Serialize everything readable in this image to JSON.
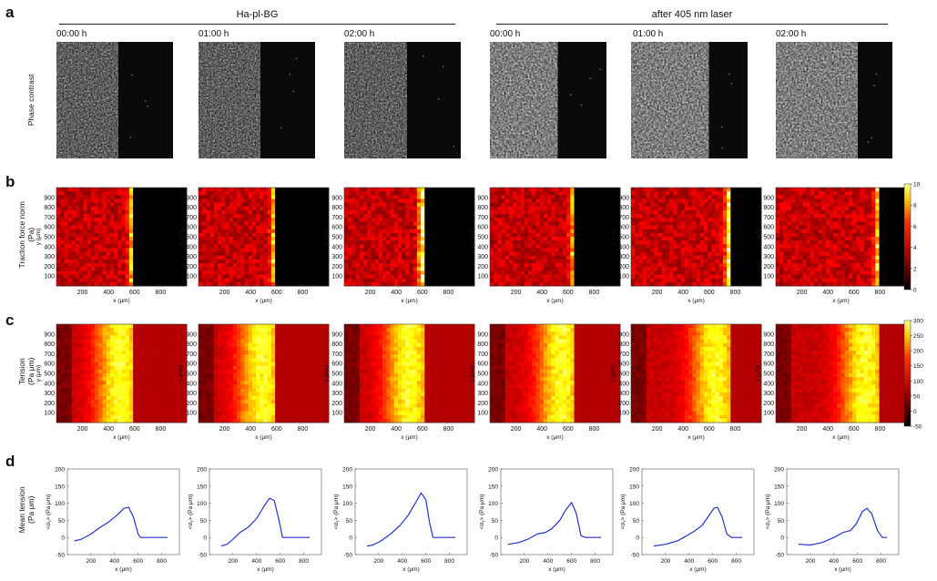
{
  "panels": {
    "a": "a",
    "b": "b",
    "c": "c",
    "d": "d"
  },
  "group_titles": [
    "Ha-pl-BG",
    "after 405 nm laser"
  ],
  "time_labels": [
    "00:00 h",
    "01:00 h",
    "02:00 h",
    "00:00 h",
    "01:00 h",
    "02:00 h"
  ],
  "row_labels": {
    "a": "Phase contrast",
    "b_line1": "Traction force norm",
    "b_line2": "(Pa)",
    "c_line1": "Tension",
    "c_line2": "(Pa μm)",
    "d_line1": "Mean tension",
    "d_line2": "(Pa μm)"
  },
  "colors": {
    "hot_black": "#000000",
    "hot_red": "#cc1100",
    "hot_yellow": "#ffff66"
  },
  "chart_data": [
    {
      "type": "heatmap",
      "panel": "b",
      "xlabel": "x (μm)",
      "ylabel": "y (μm)",
      "xticks": [
        200,
        400,
        600,
        800
      ],
      "yticks": [
        100,
        200,
        300,
        400,
        500,
        600,
        700,
        800,
        900
      ],
      "colorbar": {
        "ticks": [
          0,
          2,
          4,
          6,
          8,
          10
        ],
        "range": [
          0,
          10
        ]
      },
      "fronts": [
        600,
        600,
        610,
        660,
        760,
        800
      ]
    },
    {
      "type": "heatmap",
      "panel": "c",
      "xlabel": "x (μm)",
      "ylabel": "y (μm)",
      "xticks": [
        200,
        400,
        600,
        800
      ],
      "yticks": [
        100,
        200,
        300,
        400,
        500,
        600,
        700,
        800,
        900
      ],
      "colorbar": {
        "ticks": [
          -50,
          0,
          50,
          100,
          150,
          200,
          250,
          300
        ],
        "range": [
          -50,
          300
        ]
      },
      "fronts": [
        600,
        600,
        610,
        660,
        760,
        800
      ]
    },
    {
      "type": "line",
      "panel": "d",
      "xlabel": "x (μm)",
      "ylabel": "<σᵧ> (Pa μm)",
      "xlim": [
        0,
        950
      ],
      "ylim": [
        -50,
        200
      ],
      "xticks": [
        200,
        400,
        600,
        800
      ],
      "yticks": [
        -50,
        0,
        50,
        100,
        150,
        200
      ],
      "series": [
        {
          "x": [
            60,
            120,
            200,
            280,
            350,
            420,
            480,
            520,
            560,
            600,
            620,
            700,
            850
          ],
          "y": [
            -10,
            -5,
            10,
            30,
            45,
            65,
            85,
            88,
            60,
            10,
            0,
            0,
            0
          ]
        },
        {
          "x": [
            100,
            150,
            200,
            260,
            330,
            400,
            460,
            510,
            550,
            590,
            620,
            700,
            850
          ],
          "y": [
            -25,
            -20,
            -5,
            15,
            30,
            55,
            90,
            115,
            108,
            50,
            0,
            0,
            0
          ]
        },
        {
          "x": [
            100,
            150,
            220,
            300,
            380,
            450,
            510,
            560,
            600,
            630,
            660,
            700,
            850
          ],
          "y": [
            -25,
            -22,
            -10,
            10,
            35,
            65,
            100,
            130,
            110,
            45,
            0,
            0,
            0
          ]
        },
        {
          "x": [
            60,
            150,
            230,
            310,
            380,
            430,
            500,
            550,
            600,
            640,
            680,
            720,
            850
          ],
          "y": [
            -20,
            -15,
            -5,
            10,
            15,
            25,
            50,
            80,
            102,
            70,
            5,
            0,
            0
          ]
        },
        {
          "x": [
            100,
            200,
            300,
            380,
            450,
            510,
            560,
            610,
            640,
            680,
            720,
            760,
            850
          ],
          "y": [
            -25,
            -20,
            -10,
            5,
            20,
            35,
            60,
            85,
            88,
            60,
            10,
            0,
            0
          ]
        },
        {
          "x": [
            100,
            200,
            300,
            400,
            480,
            540,
            590,
            640,
            680,
            720,
            770,
            810,
            850
          ],
          "y": [
            -20,
            -22,
            -15,
            0,
            15,
            20,
            40,
            75,
            85,
            70,
            20,
            0,
            0
          ]
        }
      ]
    }
  ]
}
